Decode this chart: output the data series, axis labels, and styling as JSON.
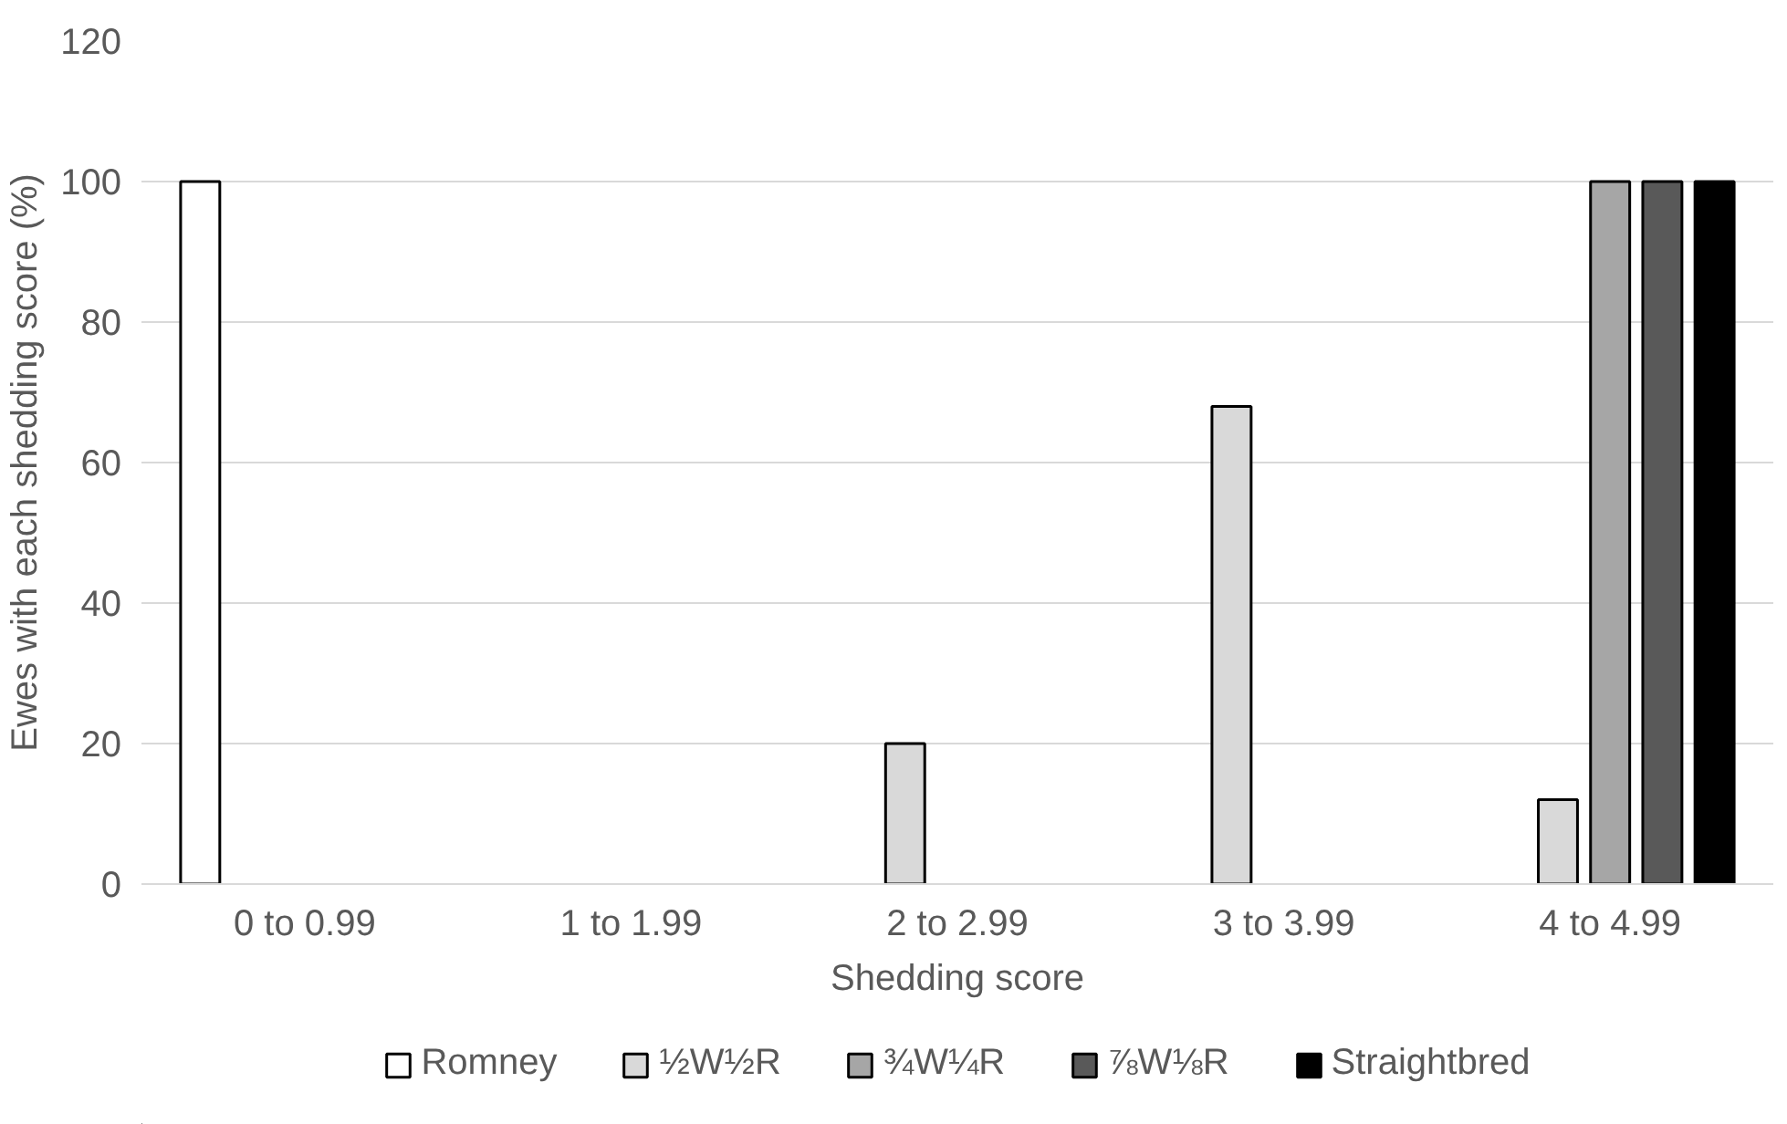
{
  "chart_data": {
    "type": "bar",
    "xlabel": "Shedding score",
    "ylabel": "Ewes with each shedding score (%)",
    "categories": [
      "0 to 0.99",
      "1 to 1.99",
      "2 to 2.99",
      "3 to 3.99",
      "4 to 4.99"
    ],
    "series": [
      {
        "name": "Romney",
        "color": "#ffffff",
        "values": [
          100,
          null,
          null,
          null,
          null
        ]
      },
      {
        "name": "½W½R",
        "color": "#d9d9d9",
        "values": [
          null,
          null,
          20,
          68,
          12
        ]
      },
      {
        "name": "¾W¼R",
        "color": "#a6a6a6",
        "values": [
          null,
          null,
          null,
          null,
          100
        ]
      },
      {
        "name": "⅞W⅛R",
        "color": "#595959",
        "values": [
          null,
          null,
          null,
          null,
          100
        ]
      },
      {
        "name": "Straightbred",
        "color": "#000000",
        "values": [
          null,
          null,
          null,
          null,
          100
        ]
      }
    ],
    "ylim": [
      0,
      120
    ],
    "yticks": [
      0,
      20,
      40,
      60,
      80,
      100,
      120
    ],
    "grid": "y",
    "legend": "bottom"
  }
}
